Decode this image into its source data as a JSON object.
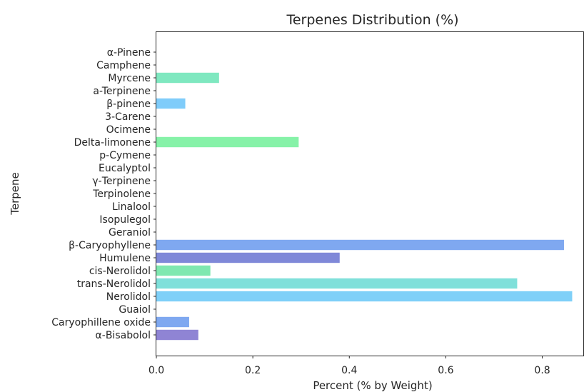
{
  "chart_data": {
    "type": "bar",
    "orientation": "horizontal",
    "title": "Terpenes Distribution (%)",
    "xlabel": "Percent (% by Weight)",
    "ylabel": "Terpene",
    "xlim": [
      0,
      0.885
    ],
    "xticks": [
      "0.0",
      "0.2",
      "0.4",
      "0.6",
      "0.8"
    ],
    "xtick_values": [
      0.0,
      0.2,
      0.4,
      0.6,
      0.8
    ],
    "grid": false,
    "categories": [
      "α-Pinene",
      "Camphene",
      "Myrcene",
      "a-Terpinene",
      "β-pinene",
      "3-Carene",
      "Ocimene",
      "Delta-limonene",
      "p-Cymene",
      "Eucalyptol",
      "γ-Terpinene",
      "Terpinolene",
      "Linalool",
      "Isopulegol",
      "Geraniol",
      "β-Caryophyllene",
      "Humulene",
      "cis-Nerolidol",
      "trans-Nerolidol",
      "Nerolidol",
      "Guaiol",
      "Caryophillene oxide",
      "α-Bisabolol"
    ],
    "values": [
      0,
      0,
      0.13,
      0,
      0.06,
      0,
      0,
      0.295,
      0,
      0,
      0,
      0,
      0,
      0,
      0,
      0.845,
      0.38,
      0.112,
      0.748,
      0.862,
      0,
      0.068,
      0.087
    ],
    "colors": [
      "#7FA8F0",
      "#7EC8E8",
      "#7FE8C0",
      "#7FE0D8",
      "#7FCCFA",
      "#7FB4F2",
      "#82B0F0",
      "#86F2A8",
      "#7FE0D0",
      "#80D8F0",
      "#7FA8F0",
      "#8A8AD8",
      "#7FA8F0",
      "#7FC8F8",
      "#80E0C8",
      "#7FA8F0",
      "#7F88D8",
      "#7FE8B0",
      "#7FE0DA",
      "#7FD0F8",
      "#7FE8C8",
      "#7FA8F0",
      "#8F84D4"
    ]
  }
}
